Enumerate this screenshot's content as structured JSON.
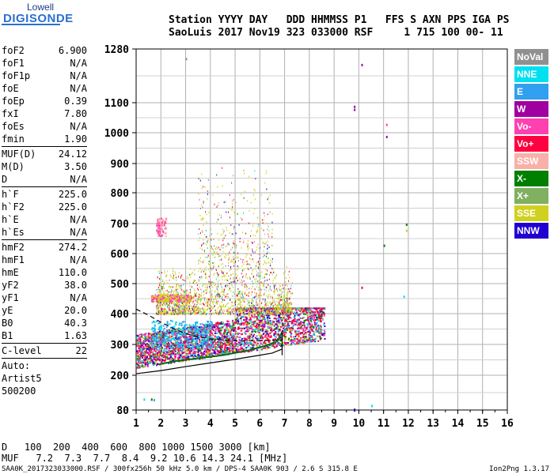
{
  "logo": {
    "top": "Lowell",
    "bottom": "DIGISONDE"
  },
  "header": {
    "line1": "Station YYYY DAY   DDD HHMMSS P1   FFS S AXN PPS IGA PS",
    "line2": "SaoLuis 2017 Nov19 323 033000 RSF     1 715 100 00- 11"
  },
  "params": [
    {
      "key": "foF2",
      "val": "6.900"
    },
    {
      "key": "foF1",
      "val": "N/A"
    },
    {
      "key": "foF1p",
      "val": "N/A"
    },
    {
      "key": "foE",
      "val": "N/A"
    },
    {
      "key": "foEp",
      "val": "0.39"
    },
    {
      "key": "fxI",
      "val": "7.80"
    },
    {
      "key": "foEs",
      "val": "N/A"
    },
    {
      "key": "fmin",
      "val": "1.90"
    },
    {
      "key": "MUF(D)",
      "val": "24.12"
    },
    {
      "key": "M(D)",
      "val": "3.50"
    },
    {
      "key": "D",
      "val": "N/A"
    },
    {
      "key": "h`F",
      "val": "225.0"
    },
    {
      "key": "h`F2",
      "val": "225.0"
    },
    {
      "key": "h`E",
      "val": "N/A"
    },
    {
      "key": "h`Es",
      "val": "N/A"
    },
    {
      "key": "hmF2",
      "val": "274.2"
    },
    {
      "key": "hmF1",
      "val": "N/A"
    },
    {
      "key": "hmE",
      "val": "110.0"
    },
    {
      "key": "yF2",
      "val": "38.0"
    },
    {
      "key": "yF1",
      "val": "N/A"
    },
    {
      "key": "yE",
      "val": "20.0"
    },
    {
      "key": "B0",
      "val": "40.3"
    },
    {
      "key": "B1",
      "val": "1.63"
    },
    {
      "key": "C-level",
      "val": "22"
    }
  ],
  "auto": {
    "l1": "Auto:",
    "l2": "Artist5",
    "l3": "500200"
  },
  "legend": [
    {
      "label": "NoVal",
      "color": "#909090"
    },
    {
      "label": "NNE",
      "color": "#00e0f0"
    },
    {
      "label": "E",
      "color": "#30a0f0"
    },
    {
      "label": "W",
      "color": "#a000a0"
    },
    {
      "label": "Vo-",
      "color": "#ff40b0"
    },
    {
      "label": "Vo+",
      "color": "#ff0040"
    },
    {
      "label": "SSW",
      "color": "#f8b0a8"
    },
    {
      "label": "X-",
      "color": "#008000"
    },
    {
      "label": "X+",
      "color": "#80b060"
    },
    {
      "label": "SSE",
      "color": "#d0d020"
    },
    {
      "label": "NNW",
      "color": "#2000d0"
    }
  ],
  "chart_data": {
    "type": "scatter",
    "title": "",
    "xlabel": "",
    "ylabel": "",
    "xlim": [
      1,
      16
    ],
    "ylim_labels": [
      80,
      200,
      300,
      400,
      500,
      600,
      700,
      800,
      900,
      1000,
      1100,
      1280
    ],
    "x_ticks": [
      "1",
      "2",
      "3",
      "4",
      "5",
      "6",
      "7",
      "8",
      "9",
      "10",
      "11",
      "12",
      "13",
      "14",
      "15",
      "16"
    ],
    "y_ticks": [
      "80",
      "200",
      "300",
      "400",
      "500",
      "600",
      "700",
      "800",
      "900",
      "1000",
      "1100",
      "1280"
    ],
    "foF2": 6.9,
    "hF": 225.0,
    "series_colors": [
      "#909090",
      "#00e0f0",
      "#30a0f0",
      "#a000a0",
      "#ff40b0",
      "#ff0040",
      "#f8b0a8",
      "#008000",
      "#80b060",
      "#d0d020",
      "#2000d0"
    ],
    "trace_f2_ordinary": [
      [
        1.9,
        235
      ],
      [
        2.5,
        245
      ],
      [
        3.5,
        255
      ],
      [
        4.5,
        265
      ],
      [
        5.5,
        280
      ],
      [
        6.2,
        295
      ],
      [
        6.7,
        310
      ],
      [
        6.9,
        340
      ]
    ],
    "profile_curve": [
      [
        1.0,
        205
      ],
      [
        2.0,
        215
      ],
      [
        3.0,
        228
      ],
      [
        4.0,
        240
      ],
      [
        5.0,
        252
      ],
      [
        6.0,
        265
      ],
      [
        6.5,
        272
      ],
      [
        6.9,
        285
      ]
    ],
    "dashed_curve": [
      [
        1.0,
        415
      ],
      [
        1.5,
        395
      ],
      [
        2.0,
        372
      ],
      [
        2.5,
        352
      ],
      [
        3.0,
        335
      ],
      [
        3.5,
        325
      ],
      [
        4.0,
        318
      ],
      [
        5.0,
        312
      ],
      [
        6.0,
        312
      ],
      [
        6.9,
        315
      ]
    ]
  },
  "dist_table": {
    "d_row": "D   100  200  400  600  800 1000 1500 3000 [km]",
    "m_row": "MUF   7.2  7.3  7.7  8.4  9.2 10.6 14.3 24.1 [MHz]"
  },
  "footer": {
    "left": "SAA0K_2017323033000.RSF / 300fx256h 50 kHz 5.0 km / DPS-4 SAA0K 903 / 2.6 S 315.8 E",
    "right": "Ion2Png 1.3.17"
  }
}
